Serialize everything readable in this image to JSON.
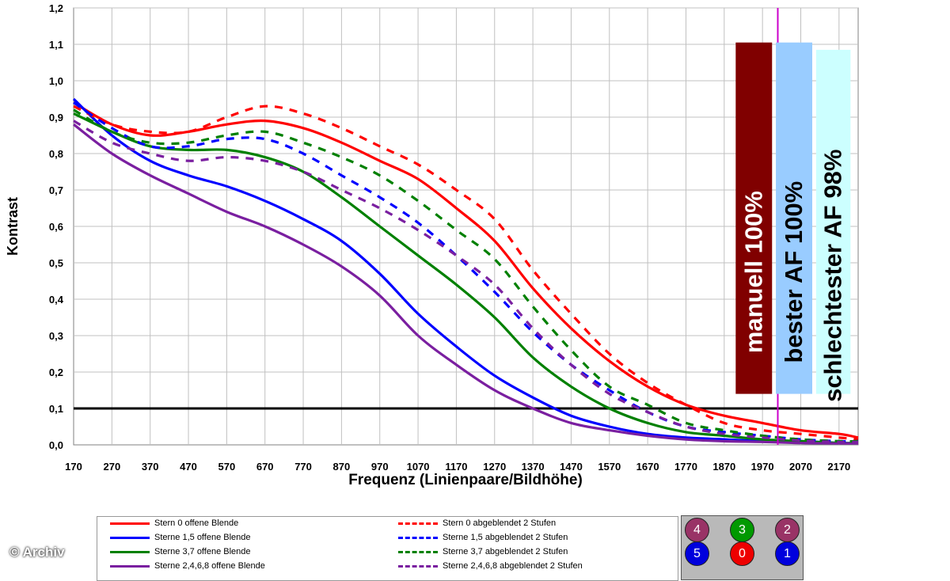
{
  "chart_data": {
    "type": "line",
    "xlabel": "Frequenz (Linienpaare/Bildhöhe)",
    "ylabel": "Kontrast",
    "xlim": [
      170,
      2220
    ],
    "ylim": [
      0,
      1.2
    ],
    "x_ticks": [
      "170",
      "270",
      "370",
      "470",
      "570",
      "670",
      "770",
      "870",
      "970",
      "1070",
      "1170",
      "1270",
      "1370",
      "1470",
      "1570",
      "1670",
      "1770",
      "1870",
      "1970",
      "2070",
      "2170"
    ],
    "y_ticks": [
      "0,0",
      "0,1",
      "0,2",
      "0,3",
      "0,4",
      "0,5",
      "0,6",
      "0,7",
      "0,8",
      "0,9",
      "1,0",
      "1,1",
      "1,2"
    ],
    "grid": true,
    "reference_line": {
      "y": 0.1,
      "color": "#000000"
    },
    "vertical_marker": {
      "x": 2010,
      "color": "#cc00cc"
    },
    "series": [
      {
        "name": "Stern 0 offene Blende",
        "color": "#ff0000",
        "dash": false,
        "points": [
          [
            170,
            0.94
          ],
          [
            270,
            0.88
          ],
          [
            370,
            0.85
          ],
          [
            470,
            0.86
          ],
          [
            570,
            0.88
          ],
          [
            670,
            0.89
          ],
          [
            770,
            0.87
          ],
          [
            870,
            0.83
          ],
          [
            970,
            0.78
          ],
          [
            1070,
            0.73
          ],
          [
            1170,
            0.65
          ],
          [
            1270,
            0.56
          ],
          [
            1370,
            0.43
          ],
          [
            1470,
            0.32
          ],
          [
            1570,
            0.23
          ],
          [
            1670,
            0.16
          ],
          [
            1770,
            0.11
          ],
          [
            1870,
            0.08
          ],
          [
            1970,
            0.06
          ],
          [
            2070,
            0.04
          ],
          [
            2170,
            0.03
          ],
          [
            2220,
            0.02
          ]
        ]
      },
      {
        "name": "Sterne 1,5 offene Blende",
        "color": "#0000ff",
        "dash": false,
        "points": [
          [
            170,
            0.95
          ],
          [
            270,
            0.85
          ],
          [
            370,
            0.78
          ],
          [
            470,
            0.74
          ],
          [
            570,
            0.71
          ],
          [
            670,
            0.67
          ],
          [
            770,
            0.62
          ],
          [
            870,
            0.56
          ],
          [
            970,
            0.47
          ],
          [
            1070,
            0.36
          ],
          [
            1170,
            0.27
          ],
          [
            1270,
            0.19
          ],
          [
            1370,
            0.13
          ],
          [
            1470,
            0.08
          ],
          [
            1570,
            0.05
          ],
          [
            1670,
            0.03
          ],
          [
            1770,
            0.02
          ],
          [
            1870,
            0.015
          ],
          [
            1970,
            0.01
          ],
          [
            2070,
            0.01
          ],
          [
            2170,
            0.005
          ],
          [
            2220,
            0.005
          ]
        ]
      },
      {
        "name": "Sterne 3,7 offene Blende",
        "color": "#008000",
        "dash": false,
        "points": [
          [
            170,
            0.91
          ],
          [
            270,
            0.86
          ],
          [
            370,
            0.82
          ],
          [
            470,
            0.81
          ],
          [
            570,
            0.81
          ],
          [
            670,
            0.79
          ],
          [
            770,
            0.75
          ],
          [
            870,
            0.68
          ],
          [
            970,
            0.6
          ],
          [
            1070,
            0.52
          ],
          [
            1170,
            0.44
          ],
          [
            1270,
            0.35
          ],
          [
            1370,
            0.24
          ],
          [
            1470,
            0.16
          ],
          [
            1570,
            0.1
          ],
          [
            1670,
            0.06
          ],
          [
            1770,
            0.035
          ],
          [
            1870,
            0.025
          ],
          [
            1970,
            0.015
          ],
          [
            2070,
            0.01
          ],
          [
            2170,
            0.005
          ],
          [
            2220,
            0.005
          ]
        ]
      },
      {
        "name": "Sterne 2,4,6,8 offene Blende",
        "color": "#7a1fa0",
        "dash": false,
        "points": [
          [
            170,
            0.88
          ],
          [
            270,
            0.8
          ],
          [
            370,
            0.74
          ],
          [
            470,
            0.69
          ],
          [
            570,
            0.64
          ],
          [
            670,
            0.6
          ],
          [
            770,
            0.55
          ],
          [
            870,
            0.49
          ],
          [
            970,
            0.41
          ],
          [
            1070,
            0.3
          ],
          [
            1170,
            0.22
          ],
          [
            1270,
            0.15
          ],
          [
            1370,
            0.1
          ],
          [
            1470,
            0.06
          ],
          [
            1570,
            0.04
          ],
          [
            1670,
            0.025
          ],
          [
            1770,
            0.015
          ],
          [
            1870,
            0.01
          ],
          [
            1970,
            0.008
          ],
          [
            2070,
            0.005
          ],
          [
            2170,
            0.004
          ],
          [
            2220,
            0.004
          ]
        ]
      },
      {
        "name": "Stern 0 abgeblendet 2 Stufen",
        "color": "#ff0000",
        "dash": true,
        "points": [
          [
            170,
            0.93
          ],
          [
            270,
            0.88
          ],
          [
            370,
            0.86
          ],
          [
            470,
            0.86
          ],
          [
            570,
            0.9
          ],
          [
            670,
            0.93
          ],
          [
            770,
            0.91
          ],
          [
            870,
            0.87
          ],
          [
            970,
            0.82
          ],
          [
            1070,
            0.77
          ],
          [
            1170,
            0.7
          ],
          [
            1270,
            0.62
          ],
          [
            1370,
            0.48
          ],
          [
            1470,
            0.36
          ],
          [
            1570,
            0.25
          ],
          [
            1670,
            0.17
          ],
          [
            1770,
            0.11
          ],
          [
            1870,
            0.06
          ],
          [
            1970,
            0.04
          ],
          [
            2070,
            0.03
          ],
          [
            2170,
            0.02
          ],
          [
            2220,
            0.015
          ]
        ]
      },
      {
        "name": "Sterne 1,5 abgeblendet 2 Stufen",
        "color": "#0000ff",
        "dash": true,
        "points": [
          [
            170,
            0.94
          ],
          [
            270,
            0.87
          ],
          [
            370,
            0.82
          ],
          [
            470,
            0.82
          ],
          [
            570,
            0.84
          ],
          [
            670,
            0.84
          ],
          [
            770,
            0.8
          ],
          [
            870,
            0.74
          ],
          [
            970,
            0.68
          ],
          [
            1070,
            0.61
          ],
          [
            1170,
            0.52
          ],
          [
            1270,
            0.42
          ],
          [
            1370,
            0.31
          ],
          [
            1470,
            0.22
          ],
          [
            1570,
            0.15
          ],
          [
            1670,
            0.09
          ],
          [
            1770,
            0.05
          ],
          [
            1870,
            0.035
          ],
          [
            1970,
            0.025
          ],
          [
            2070,
            0.015
          ],
          [
            2170,
            0.01
          ],
          [
            2220,
            0.01
          ]
        ]
      },
      {
        "name": "Sterne 3,7 abgeblendet 2 Stufen",
        "color": "#008000",
        "dash": true,
        "points": [
          [
            170,
            0.92
          ],
          [
            270,
            0.86
          ],
          [
            370,
            0.83
          ],
          [
            470,
            0.83
          ],
          [
            570,
            0.85
          ],
          [
            670,
            0.86
          ],
          [
            770,
            0.83
          ],
          [
            870,
            0.79
          ],
          [
            970,
            0.74
          ],
          [
            1070,
            0.67
          ],
          [
            1170,
            0.59
          ],
          [
            1270,
            0.51
          ],
          [
            1370,
            0.38
          ],
          [
            1470,
            0.26
          ],
          [
            1570,
            0.16
          ],
          [
            1670,
            0.11
          ],
          [
            1770,
            0.06
          ],
          [
            1870,
            0.04
          ],
          [
            1970,
            0.025
          ],
          [
            2070,
            0.015
          ],
          [
            2170,
            0.01
          ],
          [
            2220,
            0.01
          ]
        ]
      },
      {
        "name": "Sterne 2,4,6,8 abgeblendet 2 Stufen",
        "color": "#7a1fa0",
        "dash": true,
        "points": [
          [
            170,
            0.89
          ],
          [
            270,
            0.83
          ],
          [
            370,
            0.8
          ],
          [
            470,
            0.78
          ],
          [
            570,
            0.79
          ],
          [
            670,
            0.78
          ],
          [
            770,
            0.75
          ],
          [
            870,
            0.7
          ],
          [
            970,
            0.65
          ],
          [
            1070,
            0.59
          ],
          [
            1170,
            0.52
          ],
          [
            1270,
            0.44
          ],
          [
            1370,
            0.32
          ],
          [
            1470,
            0.22
          ],
          [
            1570,
            0.14
          ],
          [
            1670,
            0.09
          ],
          [
            1770,
            0.05
          ],
          [
            1870,
            0.03
          ],
          [
            1970,
            0.02
          ],
          [
            2070,
            0.012
          ],
          [
            2170,
            0.008
          ],
          [
            2220,
            0.008
          ]
        ]
      }
    ],
    "bars": [
      {
        "label": "manuell 100%",
        "color": "#800000",
        "text_color": "#ffffff",
        "x_start": 1900,
        "x_end": 1995,
        "y_top": 1.105,
        "y_bottom": 0.14
      },
      {
        "label": "bester AF 100%",
        "color": "#99ccff",
        "text_color": "#000000",
        "x_start": 2005,
        "x_end": 2100,
        "y_top": 1.105,
        "y_bottom": 0.14
      },
      {
        "label": "schlechtester AF 98%",
        "color": "#ccffff",
        "text_color": "#000000",
        "x_start": 2110,
        "x_end": 2200,
        "y_top": 1.085,
        "y_bottom": 0.14
      }
    ]
  },
  "legend": {
    "items": [
      {
        "label": "Stern 0 offene Blende",
        "color": "#ff0000",
        "dash": false
      },
      {
        "label": "Sterne 1,5 offene Blende",
        "color": "#0000ff",
        "dash": false
      },
      {
        "label": "Sterne 3,7 offene Blende",
        "color": "#008000",
        "dash": false
      },
      {
        "label": "Sterne 2,4,6,8 offene Blende",
        "color": "#7a1fa0",
        "dash": false
      },
      {
        "label": "Stern 0 abgeblendet 2 Stufen",
        "color": "#ff0000",
        "dash": true
      },
      {
        "label": "Sterne 1,5 abgeblendet 2 Stufen",
        "color": "#0000ff",
        "dash": true
      },
      {
        "label": "Sterne 3,7 abgeblendet 2 Stufen",
        "color": "#008000",
        "dash": true
      },
      {
        "label": "Sterne 2,4,6,8 abgeblendet 2 Stufen",
        "color": "#7a1fa0",
        "dash": true
      }
    ]
  },
  "star_board": {
    "dots": [
      {
        "label": "4",
        "color": "#993366"
      },
      {
        "label": "3",
        "color": "#009900"
      },
      {
        "label": "2",
        "color": "#993366"
      },
      {
        "label": "5",
        "color": "#0000dd"
      },
      {
        "label": "0",
        "color": "#ee0000"
      },
      {
        "label": "1",
        "color": "#0000dd"
      }
    ]
  },
  "copyright": "© Archiv"
}
